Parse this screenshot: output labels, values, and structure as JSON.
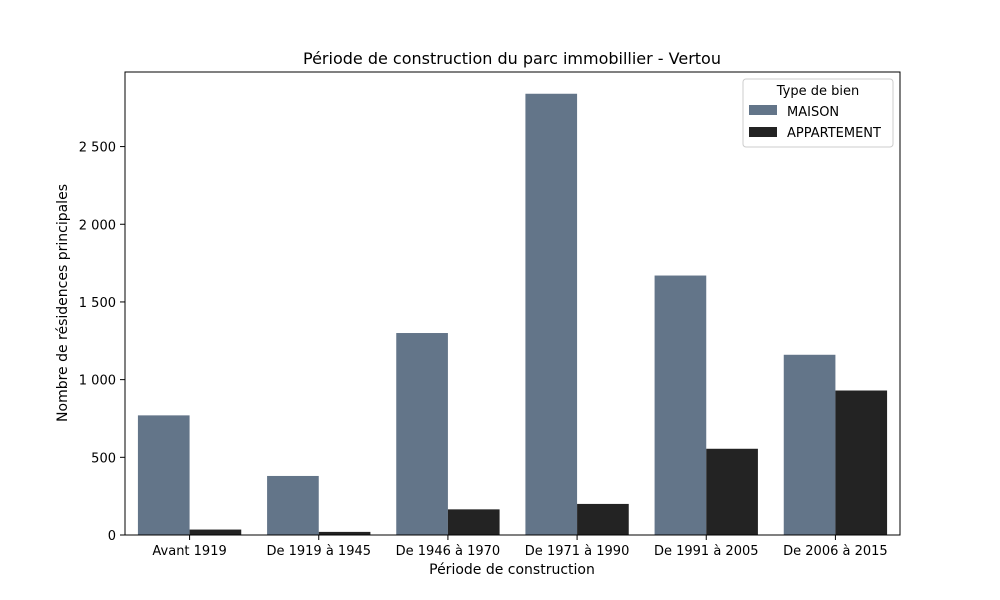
{
  "chart_data": {
    "type": "bar",
    "title": "Période de construction du parc immobillier - Vertou",
    "xlabel": "Période de construction",
    "ylabel": "Nombre de résidences principales",
    "categories": [
      "Avant 1919",
      "De 1919 à 1945",
      "De 1946 à 1970",
      "De 1971 à 1990",
      "De 1991 à 2005",
      "De 2006 à 2015"
    ],
    "series": [
      {
        "name": "MAISON",
        "color": "#637589",
        "values": [
          770,
          380,
          1300,
          2840,
          1670,
          1160
        ]
      },
      {
        "name": "APPARTEMENT",
        "color": "#232323",
        "values": [
          35,
          20,
          165,
          200,
          555,
          930
        ]
      }
    ],
    "ylim": [
      0,
      2980
    ],
    "yticks": [
      0,
      500,
      1000,
      1500,
      2000,
      2500
    ],
    "ytick_labels": [
      "0",
      "500",
      "1 000",
      "1 500",
      "2 000",
      "2 500"
    ],
    "legend": {
      "title": "Type de bien",
      "position": "top-right"
    },
    "grid": false
  }
}
